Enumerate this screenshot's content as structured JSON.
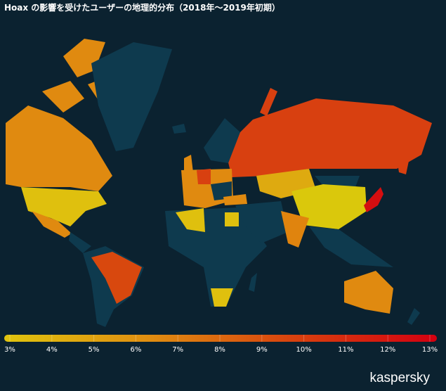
{
  "title": "Hoax の影響を受けたユーザーの地理的分布（2018年～2019年初期）",
  "legend": {
    "ticks": [
      {
        "value": 3,
        "label": "3%"
      },
      {
        "value": 4,
        "label": "4%"
      },
      {
        "value": 5,
        "label": "5%"
      },
      {
        "value": 6,
        "label": "6%"
      },
      {
        "value": 7,
        "label": "7%"
      },
      {
        "value": 8,
        "label": "8%"
      },
      {
        "value": 9,
        "label": "9%"
      },
      {
        "value": 10,
        "label": "10%"
      },
      {
        "value": 11,
        "label": "11%"
      },
      {
        "value": 12,
        "label": "12%"
      },
      {
        "value": 13,
        "label": "13%"
      }
    ],
    "colors": [
      "#e0c40e",
      "#e08e10",
      "#d8420e",
      "#d40010"
    ]
  },
  "logo": "kaspersky"
}
